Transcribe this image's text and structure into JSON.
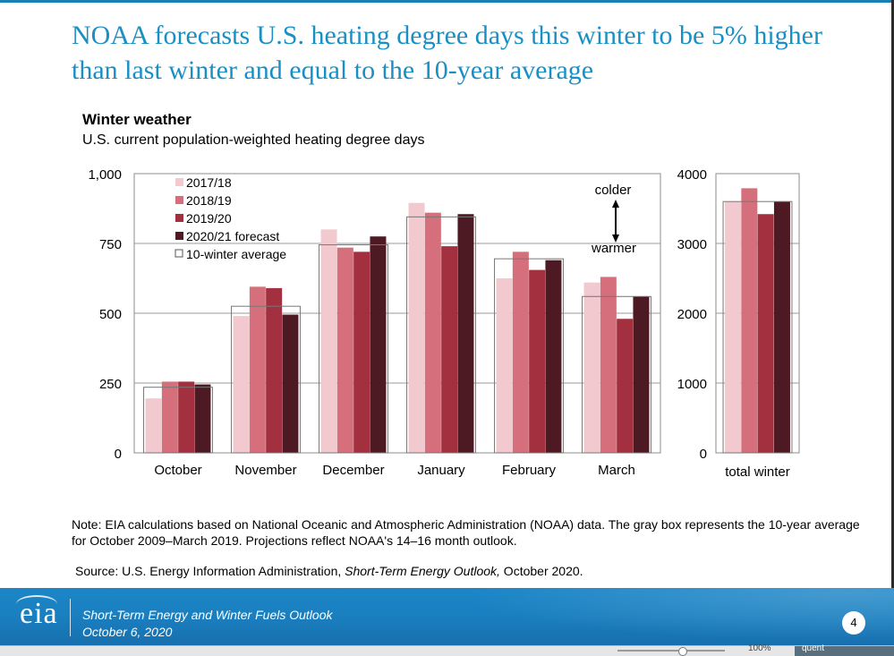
{
  "slide": {
    "title": "NOAA forecasts U.S. heating degree days this winter to be 5% higher than last winter and equal to the 10-year average",
    "note": "Note: EIA calculations based on National Oceanic and Atmospheric Administration (NOAA) data. The gray box represents the 10-year average for October 2009–March 2019. Projections reflect NOAA's 14–16 month outlook.",
    "source_prefix": "Source: U.S. Energy Information Administration, ",
    "source_italic": "Short-Term Energy Outlook,",
    "source_suffix": " October 2020."
  },
  "footer": {
    "logo_text": "eia",
    "line1": "Short-Term Energy and Winter Fuels Outlook",
    "line2": "October 6, 2020",
    "page_number": "4"
  },
  "taskbar": {
    "zoom_label": "100%",
    "tag_label": "quent"
  },
  "chart_data": [
    {
      "type": "bar",
      "title": "Winter weather",
      "subtitle": "U.S. current population-weighted heating degree days",
      "categories": [
        "October",
        "November",
        "December",
        "January",
        "February",
        "March"
      ],
      "ylim": [
        0,
        1000
      ],
      "yticks": [
        0,
        250,
        500,
        750,
        "1,000"
      ],
      "grid": true,
      "legend_position": "top-left",
      "series": [
        {
          "name": "2017/18",
          "color": "#f2c9ce",
          "values": [
            195,
            490,
            800,
            895,
            625,
            610
          ]
        },
        {
          "name": "2018/19",
          "color": "#d46f7b",
          "values": [
            255,
            595,
            735,
            860,
            720,
            630
          ]
        },
        {
          "name": "2019/20",
          "color": "#a3303f",
          "values": [
            255,
            590,
            720,
            740,
            655,
            480
          ]
        },
        {
          "name": "2020/21 forecast",
          "color": "#4d1a23",
          "values": [
            245,
            495,
            775,
            855,
            690,
            560
          ]
        }
      ],
      "reference": {
        "name": "10-winter average",
        "values": [
          235,
          525,
          745,
          845,
          695,
          560
        ]
      },
      "annotations": [
        {
          "text": "colder"
        },
        {
          "text": "warmer"
        }
      ]
    },
    {
      "type": "bar",
      "categories": [
        "total winter"
      ],
      "ylim": [
        0,
        4000
      ],
      "yticks": [
        0,
        1000,
        2000,
        3000,
        4000
      ],
      "grid": true,
      "series": [
        {
          "name": "2017/18",
          "color": "#f2c9ce",
          "values": [
            3600
          ]
        },
        {
          "name": "2018/19",
          "color": "#d46f7b",
          "values": [
            3790
          ]
        },
        {
          "name": "2019/20",
          "color": "#a3303f",
          "values": [
            3420
          ]
        },
        {
          "name": "2020/21 forecast",
          "color": "#4d1a23",
          "values": [
            3600
          ]
        }
      ],
      "reference": {
        "name": "10-winter average",
        "values": [
          3600
        ]
      }
    }
  ]
}
